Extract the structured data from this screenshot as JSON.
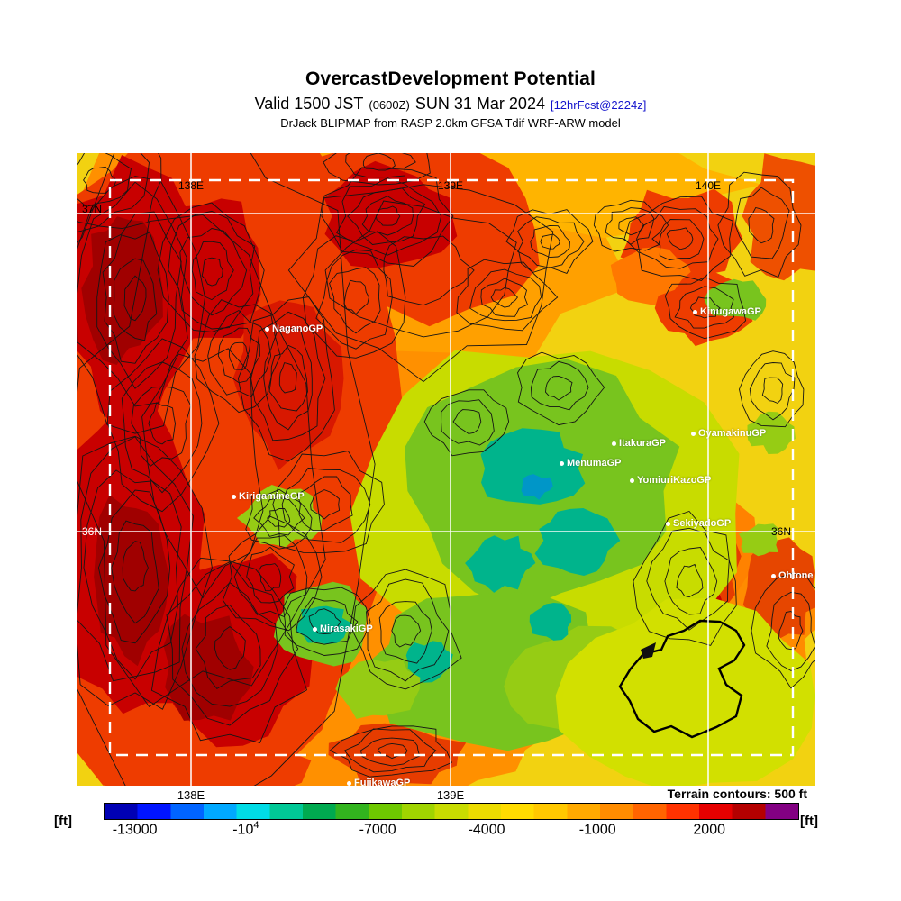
{
  "header": {
    "title": "OvercastDevelopment Potential",
    "valid_prefix": "Valid 1500 JST",
    "valid_zulu": "(0600Z)",
    "valid_date": "SUN 31 Mar 2024",
    "forecast_tag": "[12hrFcst@2224z]",
    "model_line": "DrJack BLIPMAP from RASP 2.0km GFSA Tdif WRF-ARW model"
  },
  "map": {
    "grid": {
      "top": [
        "138E",
        "139E",
        "140E"
      ],
      "bottom": [
        "138E",
        "139E"
      ],
      "left": [
        "37N",
        "36N"
      ],
      "right": [
        "36N"
      ]
    },
    "stations": [
      {
        "name": "NaganoGP"
      },
      {
        "name": "KinugawaGP"
      },
      {
        "name": "OyamakinuGP"
      },
      {
        "name": "ItakuraGP"
      },
      {
        "name": "MenumaGP"
      },
      {
        "name": "YomiuriKazoGP"
      },
      {
        "name": "SekiyadoGP"
      },
      {
        "name": "Ohtone"
      },
      {
        "name": "KirigamineGP"
      },
      {
        "name": "NirasakiGP"
      },
      {
        "name": "FujikawaGP"
      }
    ]
  },
  "colorbar": {
    "unit_left": "[ft]",
    "unit_right": "[ft]",
    "terrain_note": "Terrain contours: 500 ft",
    "ticks": [
      {
        "label": "-13000",
        "sup": ""
      },
      {
        "label": "-10",
        "sup": "4"
      },
      {
        "label": "-7000",
        "sup": ""
      },
      {
        "label": "-4000",
        "sup": ""
      },
      {
        "label": "-1000",
        "sup": ""
      },
      {
        "label": "2000",
        "sup": ""
      }
    ],
    "colors": [
      "#0000b4",
      "#0014ff",
      "#0064ff",
      "#00a8ff",
      "#00dce6",
      "#00c896",
      "#00aa50",
      "#32b41e",
      "#6ec800",
      "#a0d400",
      "#c8dc00",
      "#ecdc00",
      "#ffdc00",
      "#ffc800",
      "#ffaa00",
      "#ff8c00",
      "#ff6400",
      "#ff3200",
      "#e60000",
      "#b40000",
      "#820082"
    ]
  },
  "chart_data": {
    "type": "heatmap",
    "title": "OvercastDevelopment Potential",
    "subtitle": "Valid 1500 JST (0600Z) SUN 31 Mar 2024 [12hrFcst@2224z]",
    "source": "DrJack BLIPMAP from RASP 2.0km GFSA Tdif WRF-ARW model",
    "units": "ft",
    "colorbar": {
      "min": -13800,
      "max": 4400,
      "tick_values": [
        -13000,
        -10000,
        -7000,
        -4000,
        -1000,
        2000
      ],
      "tick_labels": [
        "-13000",
        "-10^4",
        "-7000",
        "-4000",
        "-1000",
        "2000"
      ]
    },
    "terrain_contour_interval_ft": 500,
    "x_ticks": [
      "138E",
      "139E",
      "140E"
    ],
    "y_ticks": [
      "37N",
      "36N"
    ],
    "stations": [
      "NaganoGP",
      "KinugawaGP",
      "OyamakinuGP",
      "ItakuraGP",
      "MenumaGP",
      "YomiuriKazoGP",
      "SekiyadoGP",
      "Ohtone",
      "KirigamineGP",
      "NirasakiGP",
      "FujikawaGP"
    ],
    "field_summary": "High overcast development potential (red/dark red, roughly -1000 ft to above 2000 ft) over the western and north-central mountain ranges and in the upper-right near KinugawaGP and around Ohtone; low potential (green to teal, roughly -7000 to -10000 ft) over the central-eastern Kanto plain near MenumaGP/ItakuraGP and around NirasakiGP; yellow background (about -4000 ft) elsewhere; dense black terrain contours every 500 ft over mountainous west"
  }
}
